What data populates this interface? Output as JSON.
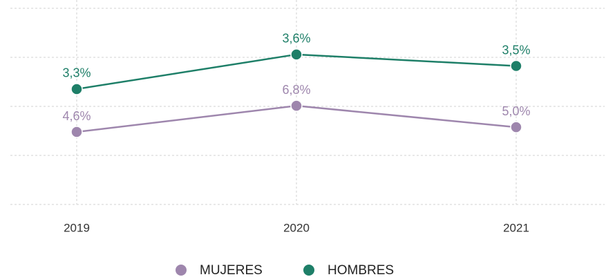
{
  "chart_data": {
    "type": "line",
    "categories": [
      "2019",
      "2020",
      "2021"
    ],
    "series": [
      {
        "name": "MUJERES",
        "color": "#9e86ad",
        "values": [
          4.6,
          6.8,
          5.0
        ],
        "value_labels": [
          "4,6%",
          "6,8%",
          "5,0%"
        ]
      },
      {
        "name": "HOMBRES",
        "color": "#1e7f68",
        "axis": "y2",
        "values": [
          3.3,
          3.6,
          3.5
        ],
        "value_labels": [
          "3,3%",
          "3,6%",
          "3,5%"
        ]
      }
    ],
    "ylim": [
      -1.5,
      15
    ],
    "y2lim": [
      2.3,
      4.0
    ],
    "grid": true,
    "legend": "bottom"
  }
}
